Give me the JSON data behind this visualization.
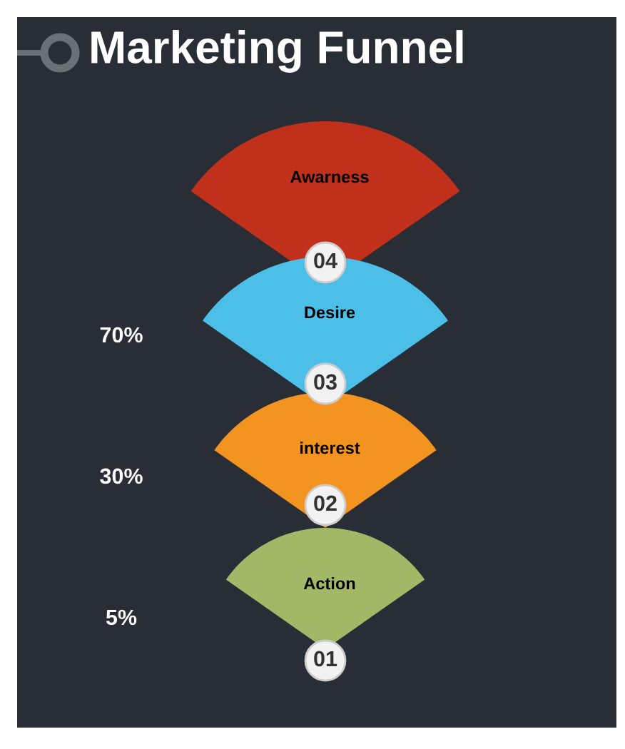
{
  "chart_data": {
    "type": "other",
    "title": "Marketing Funnel",
    "categories": [
      "Awarness",
      "Desire",
      "interest",
      "Action"
    ],
    "colors": [
      "#c0301a",
      "#4bbfe8",
      "#f39320",
      "#a2b866"
    ],
    "values": [
      null,
      70,
      30,
      5
    ],
    "value_labels": [
      null,
      "70%",
      "30%",
      "5%"
    ],
    "annotations": [
      "04",
      "03",
      "02",
      "01"
    ]
  }
}
